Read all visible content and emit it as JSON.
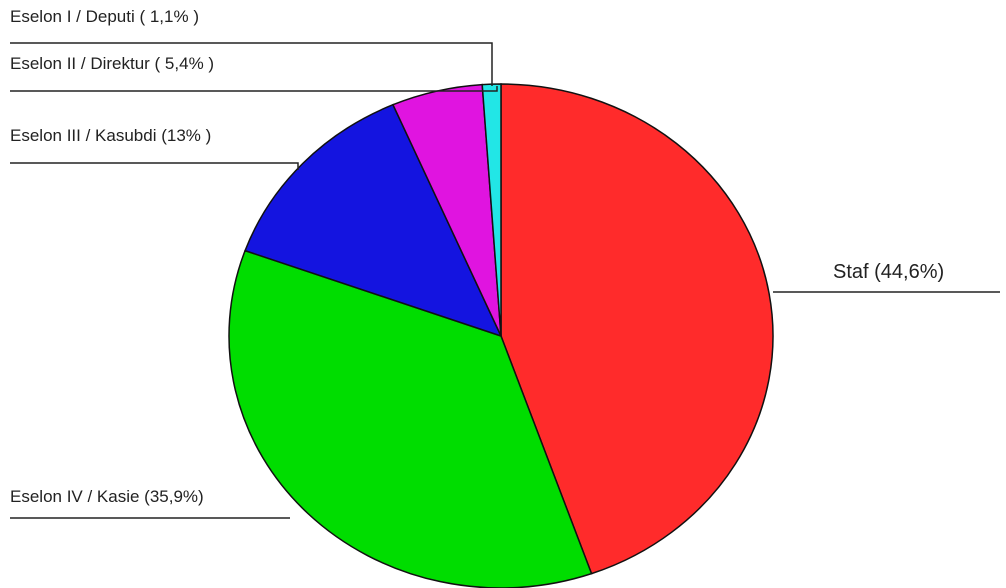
{
  "chart_data": {
    "type": "pie",
    "categories": [
      "Staf (44,6%)",
      "Eselon IV / Kasie (35,9%)",
      "Eselon III / Kasubdi (13% )",
      "Eselon II / Direktur ( 5,4% )",
      "Eselon I / Deputi ( 1,1% )"
    ],
    "values": [
      44.6,
      35.9,
      13,
      5.4,
      1.1
    ],
    "colors": [
      "#ff2b2b",
      "#00dd00",
      "#1414e0",
      "#e014e0",
      "#22e6e6"
    ]
  }
}
